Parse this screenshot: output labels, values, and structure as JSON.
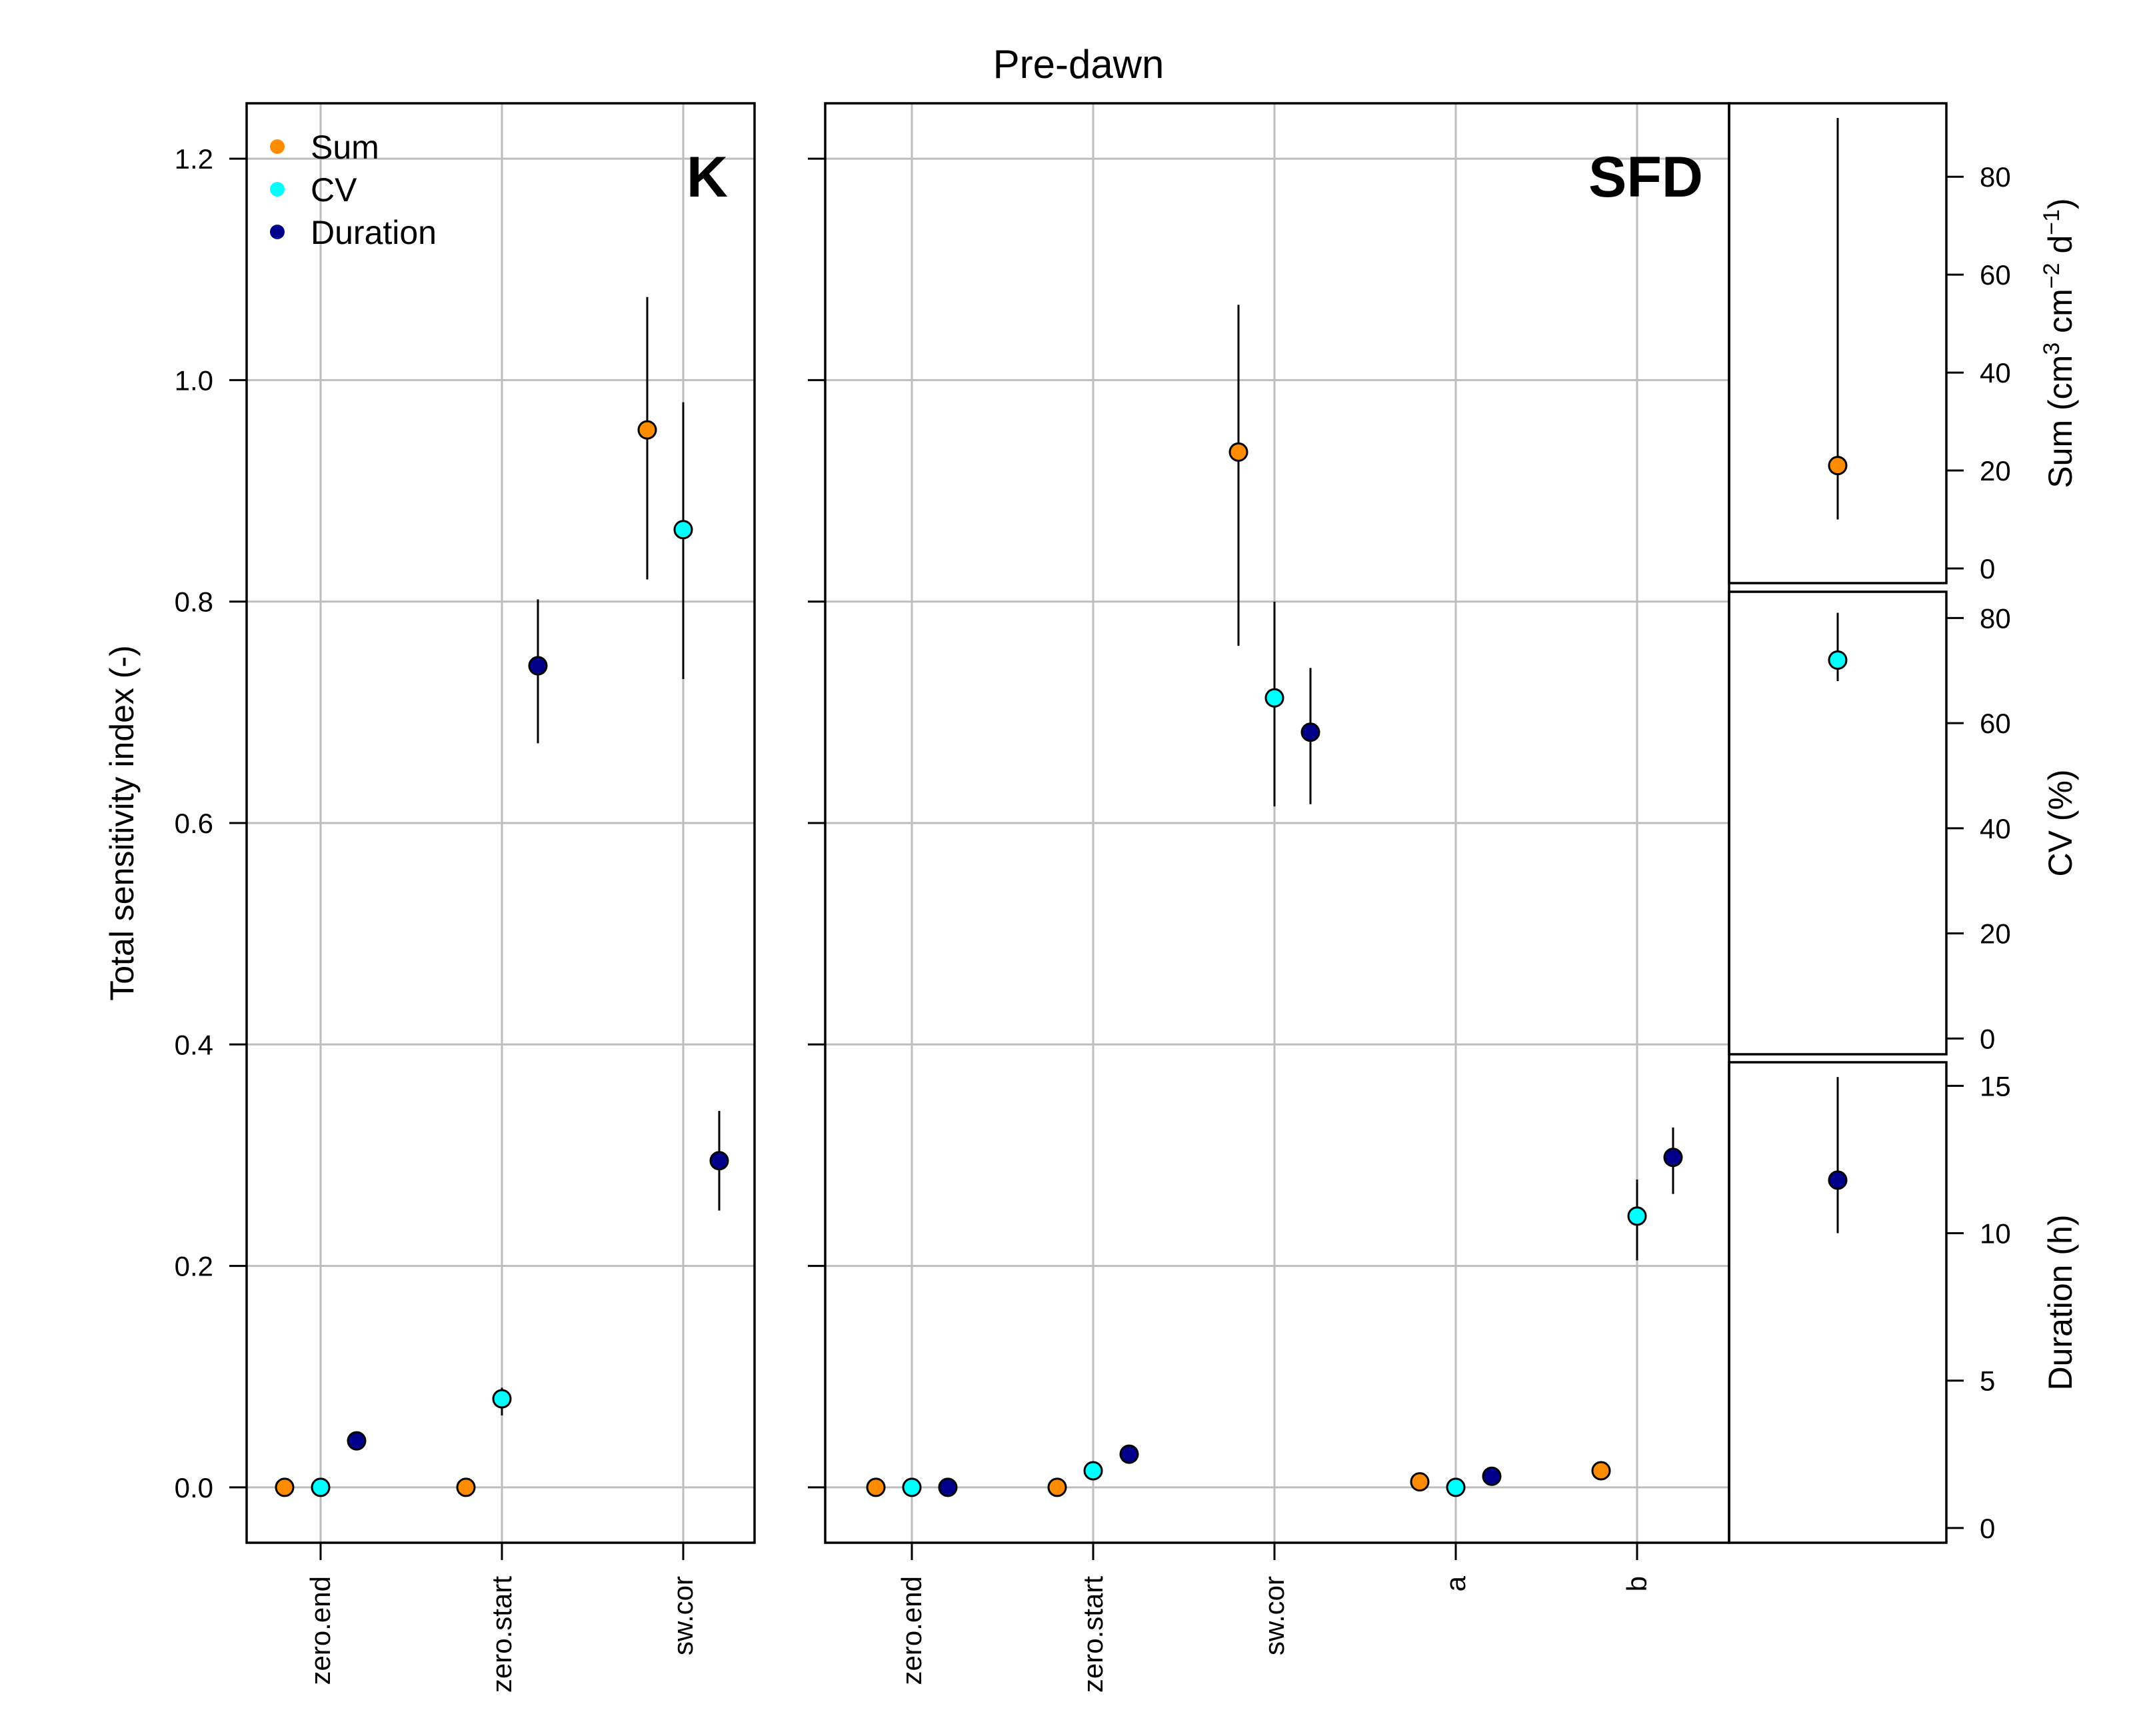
{
  "chart_data": [
    {
      "id": "k-panel",
      "type": "scatter",
      "panel_label": "K",
      "categories": [
        "zero.end",
        "zero.start",
        "sw.cor"
      ],
      "ylabel": "Total sensitivity index (-)",
      "ylim": [
        -0.05,
        1.25
      ],
      "yticks": [
        "0.0",
        "0.2",
        "0.4",
        "0.6",
        "0.8",
        "1.0",
        "1.2"
      ],
      "grid": true,
      "legend_position": "top-left",
      "series": [
        {
          "name": "Sum",
          "color": "#ff8c00",
          "values": [
            0.0,
            0.0,
            0.955
          ],
          "err_low": [
            null,
            null,
            0.82
          ],
          "err_high": [
            null,
            null,
            1.075
          ]
        },
        {
          "name": "CV",
          "color": "#00ffff",
          "values": [
            0.0,
            0.08,
            0.865
          ],
          "err_low": [
            null,
            0.065,
            0.73
          ],
          "err_high": [
            null,
            0.09,
            0.98
          ]
        },
        {
          "name": "Duration",
          "color": "#00008b",
          "values": [
            0.042,
            0.742,
            0.295
          ],
          "err_low": [
            null,
            0.672,
            0.25
          ],
          "err_high": [
            null,
            0.802,
            0.34
          ]
        }
      ]
    },
    {
      "id": "sfd-panel",
      "type": "scatter",
      "panel_label": "SFD",
      "categories": [
        "zero.end",
        "zero.start",
        "sw.cor",
        "a",
        "b"
      ],
      "ylim": [
        -0.05,
        1.25
      ],
      "grid": true,
      "series": [
        {
          "name": "Sum",
          "color": "#ff8c00",
          "values": [
            0.0,
            0.0,
            0.935,
            0.005,
            0.015
          ],
          "err_low": [
            null,
            null,
            0.76,
            null,
            null
          ],
          "err_high": [
            null,
            null,
            1.068,
            null,
            null
          ]
        },
        {
          "name": "CV",
          "color": "#00ffff",
          "values": [
            0.0,
            0.015,
            0.713,
            0.0,
            0.245
          ],
          "err_low": [
            null,
            null,
            0.615,
            null,
            0.205
          ],
          "err_high": [
            null,
            null,
            0.8,
            null,
            0.278
          ]
        },
        {
          "name": "Duration",
          "color": "#00008b",
          "values": [
            0.0,
            0.03,
            0.682,
            0.01,
            0.298
          ],
          "err_low": [
            null,
            null,
            0.617,
            null,
            0.265
          ],
          "err_high": [
            null,
            null,
            0.74,
            null,
            0.325
          ]
        }
      ]
    },
    {
      "id": "sum-panel",
      "type": "scatter",
      "series_name": "Sum",
      "color": "#ff8c00",
      "value": 21.0,
      "err_low": 10.0,
      "err_high": 92.0,
      "ylim": [
        -3,
        95
      ],
      "yticks": [
        "0",
        "20",
        "40",
        "60",
        "80"
      ],
      "ylabel": {
        "prefix": "Sum (cm",
        "sup1": "3",
        "mid1": " cm",
        "sup2": "−2",
        "mid2": " d",
        "sup3": "−1",
        "suffix": ")"
      }
    },
    {
      "id": "cv-panel",
      "type": "scatter",
      "series_name": "CV",
      "color": "#00ffff",
      "value": 72.0,
      "err_low": 68.0,
      "err_high": 81.0,
      "ylim": [
        -3,
        85
      ],
      "yticks": [
        "0",
        "20",
        "40",
        "60",
        "80"
      ],
      "ylabel": "CV (%)"
    },
    {
      "id": "duration-panel",
      "type": "scatter",
      "series_name": "Duration",
      "color": "#00008b",
      "value": 11.8,
      "err_low": 10.0,
      "err_high": 15.3,
      "ylim": [
        -0.5,
        15.8
      ],
      "yticks": [
        "0",
        "5",
        "10",
        "15"
      ],
      "ylabel": "Duration (h)"
    }
  ],
  "title": "Pre-dawn",
  "legend": {
    "items": [
      {
        "label": "Sum",
        "color": "#ff8c00"
      },
      {
        "label": "CV",
        "color": "#00ffff"
      },
      {
        "label": "Duration",
        "color": "#00008b"
      }
    ]
  },
  "colors": {
    "grid": "#bebebe",
    "axis": "#000000"
  }
}
